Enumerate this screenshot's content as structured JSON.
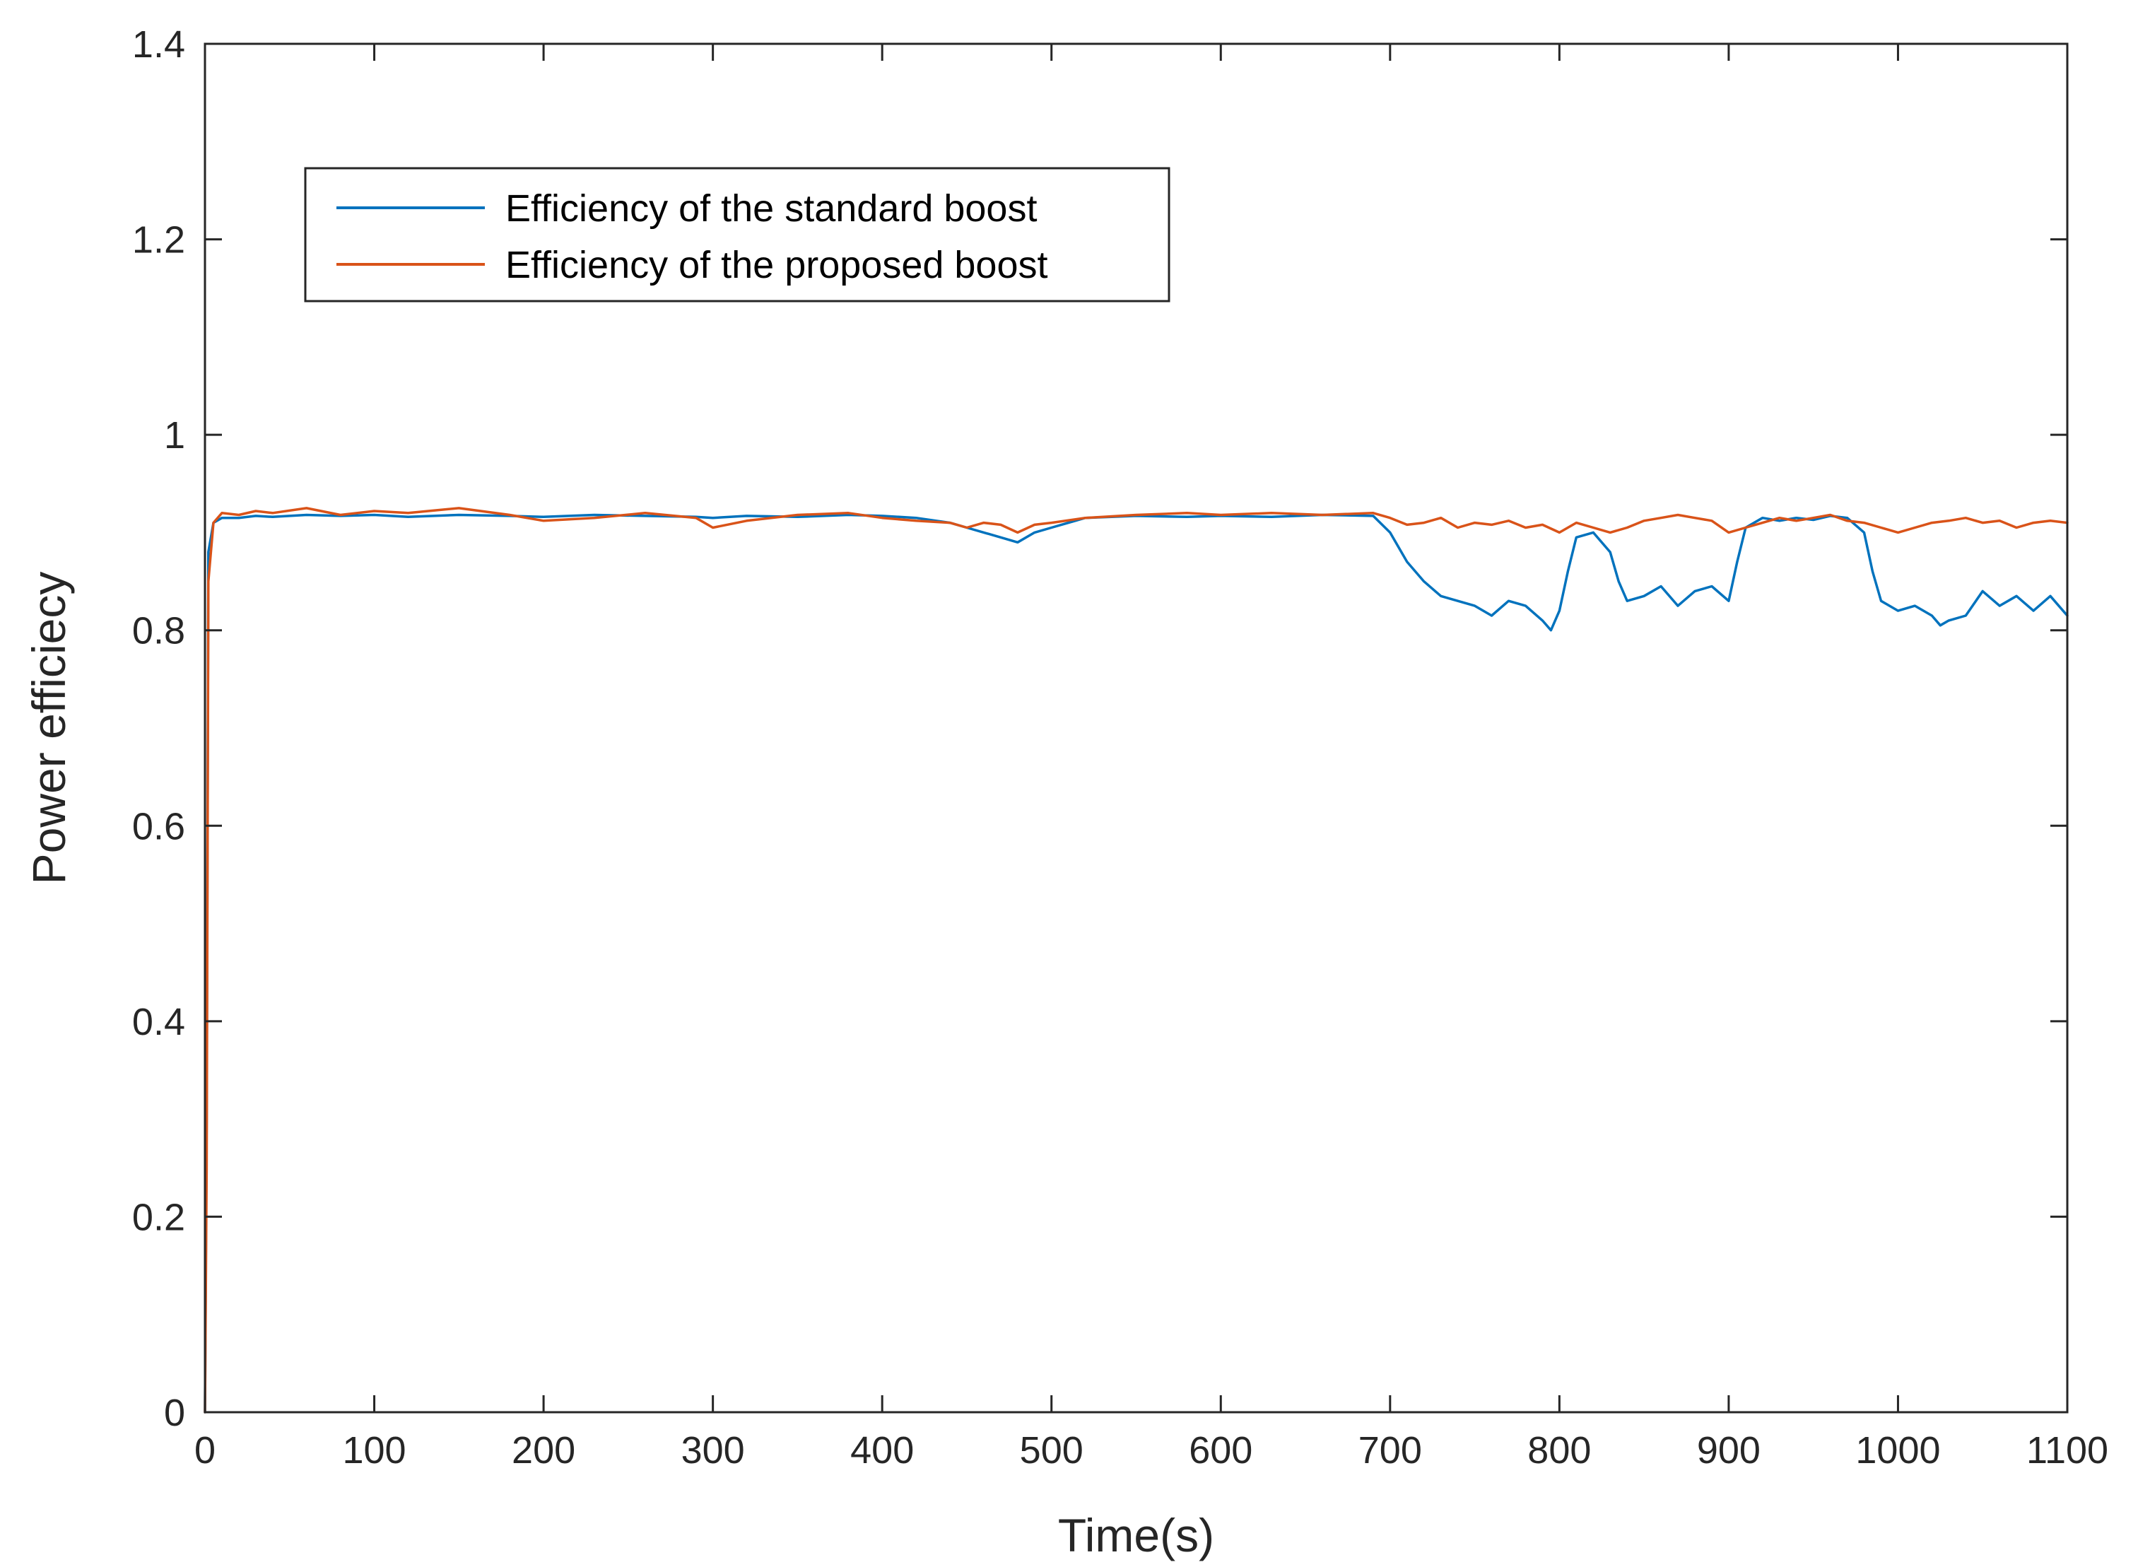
{
  "chart_data": {
    "type": "line",
    "title": "",
    "xlabel": "Time(s)",
    "ylabel": "Power efficiecy",
    "xlim": [
      0,
      1100
    ],
    "ylim": [
      0,
      1.4
    ],
    "xticks": [
      0,
      100,
      200,
      300,
      400,
      500,
      600,
      700,
      800,
      900,
      1000,
      1100
    ],
    "xtick_labels": [
      "0",
      "100",
      "200",
      "300",
      "400",
      "500",
      "600",
      "700",
      "800",
      "900",
      "1000",
      "1100"
    ],
    "yticks": [
      0,
      0.2,
      0.4,
      0.6,
      0.8,
      1.0,
      1.2,
      1.4
    ],
    "ytick_labels": [
      "0",
      "0.2",
      "0.4",
      "0.6",
      "0.8",
      "1",
      "1.2",
      "1.4"
    ],
    "grid": false,
    "legend_position": "upper-left",
    "series": [
      {
        "name": "Efficiency of the standard boost",
        "color": "#0072BD",
        "x": [
          0,
          1,
          2,
          5,
          10,
          20,
          30,
          40,
          60,
          80,
          100,
          120,
          150,
          180,
          200,
          230,
          260,
          290,
          300,
          320,
          350,
          380,
          400,
          420,
          440,
          450,
          460,
          470,
          480,
          490,
          500,
          520,
          550,
          580,
          600,
          630,
          660,
          690,
          700,
          710,
          720,
          730,
          740,
          750,
          760,
          770,
          780,
          790,
          795,
          800,
          805,
          810,
          820,
          830,
          835,
          840,
          850,
          860,
          870,
          880,
          890,
          900,
          905,
          910,
          920,
          930,
          940,
          950,
          960,
          970,
          980,
          985,
          990,
          1000,
          1010,
          1020,
          1025,
          1030,
          1040,
          1050,
          1060,
          1070,
          1080,
          1090,
          1100
        ],
        "y": [
          0.0,
          0.3,
          0.88,
          0.91,
          0.915,
          0.915,
          0.917,
          0.916,
          0.918,
          0.917,
          0.918,
          0.916,
          0.918,
          0.917,
          0.916,
          0.918,
          0.917,
          0.916,
          0.915,
          0.917,
          0.916,
          0.918,
          0.917,
          0.915,
          0.91,
          0.905,
          0.9,
          0.895,
          0.89,
          0.9,
          0.905,
          0.915,
          0.917,
          0.916,
          0.917,
          0.916,
          0.918,
          0.917,
          0.9,
          0.87,
          0.85,
          0.835,
          0.83,
          0.825,
          0.815,
          0.83,
          0.825,
          0.81,
          0.8,
          0.82,
          0.86,
          0.895,
          0.9,
          0.88,
          0.85,
          0.83,
          0.835,
          0.845,
          0.825,
          0.84,
          0.845,
          0.83,
          0.87,
          0.905,
          0.915,
          0.912,
          0.915,
          0.913,
          0.917,
          0.915,
          0.9,
          0.86,
          0.83,
          0.82,
          0.825,
          0.815,
          0.805,
          0.81,
          0.815,
          0.84,
          0.825,
          0.835,
          0.82,
          0.835,
          0.815
        ]
      },
      {
        "name": "Efficiency of the proposed boost",
        "color": "#D95319",
        "x": [
          0,
          1,
          2,
          5,
          10,
          20,
          30,
          40,
          60,
          80,
          100,
          120,
          150,
          180,
          200,
          230,
          260,
          290,
          300,
          320,
          350,
          380,
          400,
          420,
          440,
          450,
          460,
          470,
          480,
          490,
          500,
          520,
          550,
          580,
          600,
          630,
          660,
          690,
          700,
          710,
          720,
          730,
          740,
          750,
          760,
          770,
          780,
          790,
          800,
          810,
          820,
          830,
          840,
          850,
          860,
          870,
          880,
          890,
          900,
          910,
          920,
          930,
          940,
          950,
          960,
          970,
          980,
          990,
          1000,
          1010,
          1020,
          1030,
          1040,
          1050,
          1060,
          1070,
          1080,
          1090,
          1100
        ],
        "y": [
          0.0,
          0.25,
          0.85,
          0.91,
          0.92,
          0.918,
          0.922,
          0.92,
          0.925,
          0.918,
          0.922,
          0.92,
          0.925,
          0.918,
          0.912,
          0.915,
          0.92,
          0.915,
          0.905,
          0.912,
          0.918,
          0.92,
          0.915,
          0.912,
          0.91,
          0.905,
          0.91,
          0.908,
          0.9,
          0.908,
          0.91,
          0.915,
          0.918,
          0.92,
          0.918,
          0.92,
          0.918,
          0.92,
          0.915,
          0.908,
          0.91,
          0.915,
          0.905,
          0.91,
          0.908,
          0.912,
          0.905,
          0.908,
          0.9,
          0.91,
          0.905,
          0.9,
          0.905,
          0.912,
          0.915,
          0.918,
          0.915,
          0.912,
          0.9,
          0.905,
          0.91,
          0.915,
          0.912,
          0.915,
          0.918,
          0.912,
          0.91,
          0.905,
          0.9,
          0.905,
          0.91,
          0.912,
          0.915,
          0.91,
          0.912,
          0.905,
          0.91,
          0.912,
          0.91
        ]
      }
    ]
  }
}
